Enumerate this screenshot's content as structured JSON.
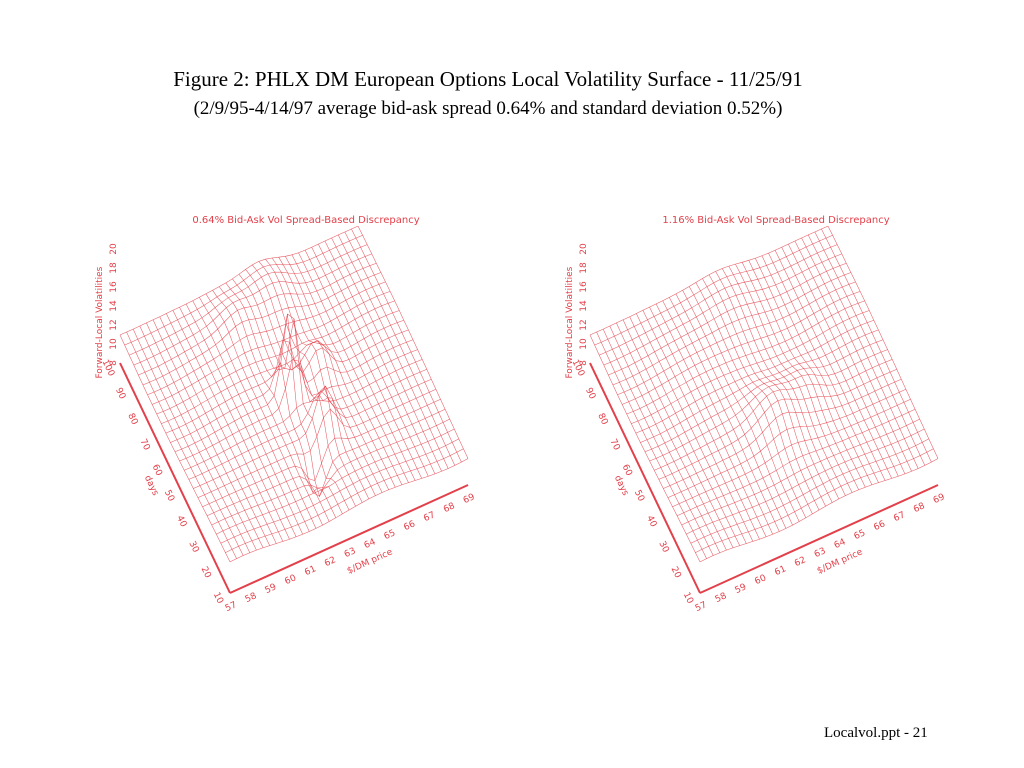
{
  "title": "Figure 2: PHLX DM European Options Local Volatility Surface - 11/25/91",
  "subtitle": "(2/9/95-4/14/97 average bid-ask spread 0.64% and standard deviation 0.52%)",
  "footer": "Localvol.ppt - 21",
  "colors": {
    "line": "#e2404a",
    "text": "#000000"
  },
  "chart_data": [
    {
      "type": "surface",
      "title": "0.64% Bid-Ask Vol Spread-Based Discrepancy",
      "zlabel": "Forward-Local Volatilities",
      "xlabel": "$/DM price",
      "ylabel": "days",
      "x_ticks": [
        "57",
        "58",
        "59",
        "60",
        "61",
        "62",
        "63",
        "64",
        "65",
        "66",
        "67",
        "68",
        "69"
      ],
      "y_ticks": [
        "10",
        "20",
        "30",
        "40",
        "50",
        "60",
        "70",
        "80",
        "90",
        "100"
      ],
      "z_ticks": [
        "8",
        "10",
        "12",
        "14",
        "16",
        "18",
        "20"
      ],
      "xlim": [
        57,
        69
      ],
      "ylim": [
        10,
        100
      ],
      "zlim": [
        8,
        20
      ],
      "base_level": 11,
      "features": [
        {
          "x": 62.8,
          "days": 55,
          "height": 9.5,
          "width": 0.5
        },
        {
          "x": 63.6,
          "days": 40,
          "height": 4.5,
          "width": 0.6
        },
        {
          "x": 64.5,
          "days": 60,
          "height": 3.0,
          "width": 0.7
        },
        {
          "x": 64.0,
          "days": 90,
          "height": 2.0,
          "width": 1.3
        },
        {
          "x": 62.0,
          "days": 85,
          "height": 1.5,
          "width": 1.0
        },
        {
          "x": 62.6,
          "days": 30,
          "height": -3.5,
          "width": 0.5
        }
      ]
    },
    {
      "type": "surface",
      "title": "1.16% Bid-Ask Vol Spread-Based Discrepancy",
      "zlabel": "Forward-Local Volatilities",
      "xlabel": "$/DM price",
      "ylabel": "days",
      "x_ticks": [
        "57",
        "58",
        "59",
        "60",
        "61",
        "62",
        "63",
        "64",
        "65",
        "66",
        "67",
        "68",
        "69"
      ],
      "y_ticks": [
        "10",
        "20",
        "30",
        "40",
        "50",
        "60",
        "70",
        "80",
        "90",
        "100"
      ],
      "z_ticks": [
        "8",
        "10",
        "12",
        "14",
        "16",
        "18",
        "20"
      ],
      "xlim": [
        57,
        69
      ],
      "ylim": [
        10,
        100
      ],
      "zlim": [
        8,
        20
      ],
      "base_level": 11,
      "features": [
        {
          "x": 63.0,
          "days": 45,
          "height": 2.5,
          "width": 1.2
        },
        {
          "x": 64.8,
          "days": 50,
          "height": 1.5,
          "width": 1.0
        },
        {
          "x": 63.5,
          "days": 90,
          "height": 1.0,
          "width": 1.6
        }
      ]
    }
  ]
}
